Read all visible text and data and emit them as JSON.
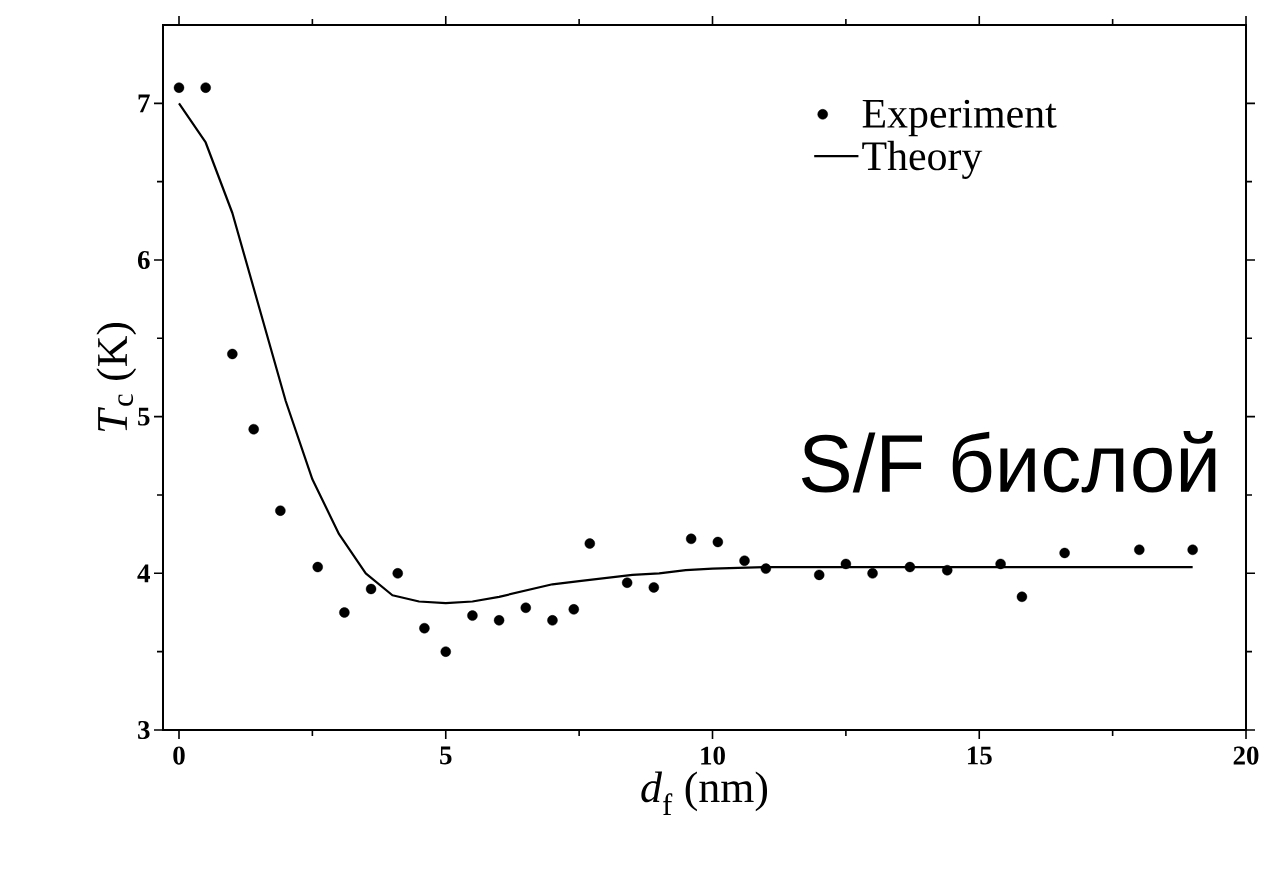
{
  "chart_data": {
    "type": "scatter",
    "xlabel": "*d*$_{f}$ (nm)",
    "ylabel": "*T*$_{c}$ (K)",
    "annotations": [
      "S/F бислой"
    ],
    "xlim": [
      -0.3,
      20
    ],
    "ylim": [
      3,
      7.5
    ],
    "xticks": [
      0,
      5,
      10,
      15,
      20
    ],
    "yticks": [
      3,
      4,
      5,
      6,
      7
    ],
    "grid": false,
    "legend": "top right",
    "series": [
      {
        "name": "Experiment",
        "marker": "circle",
        "color": "#000000",
        "x": [
          0,
          0.5,
          1,
          1.4,
          1.9,
          2.6,
          3.1,
          3.6,
          4.1,
          4.6,
          5.0,
          5.5,
          6.0,
          6.5,
          7.0,
          7.4,
          7.7,
          8.4,
          8.9,
          9.6,
          10.1,
          10.6,
          11.0,
          12.0,
          12.5,
          13.0,
          13.7,
          14.4,
          15.4,
          15.8,
          16.6,
          18.0,
          19.0
        ],
        "values": [
          7.1,
          7.1,
          5.4,
          4.92,
          4.4,
          4.04,
          3.75,
          3.9,
          4.0,
          3.65,
          3.5,
          3.73,
          3.7,
          3.78,
          3.7,
          3.77,
          4.19,
          3.94,
          3.91,
          4.22,
          4.2,
          4.08,
          4.03,
          3.99,
          4.06,
          4.0,
          4.04,
          4.02,
          4.06,
          3.85,
          4.13,
          4.15,
          4.15
        ]
      },
      {
        "name": "Theory",
        "type": "line",
        "marker": "none",
        "line_style": "solid",
        "color": "#000000",
        "x": [
          0,
          0.5,
          1,
          1.5,
          2,
          2.5,
          3,
          3.5,
          4,
          4.5,
          5,
          5.5,
          6,
          6.5,
          7,
          7.5,
          8,
          8.5,
          9,
          9.5,
          10,
          11,
          12,
          15,
          19
        ],
        "values": [
          7.0,
          6.75,
          6.3,
          5.7,
          5.1,
          4.6,
          4.25,
          4.0,
          3.86,
          3.82,
          3.81,
          3.82,
          3.85,
          3.89,
          3.93,
          3.95,
          3.97,
          3.99,
          4.0,
          4.02,
          4.03,
          4.04,
          4.04,
          4.04,
          4.04
        ]
      }
    ]
  }
}
